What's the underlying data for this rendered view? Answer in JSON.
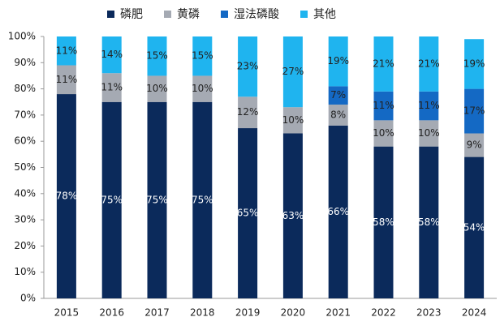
{
  "chart_data": {
    "type": "stacked_bar",
    "categories": [
      "2015",
      "2016",
      "2017",
      "2018",
      "2019",
      "2020",
      "2021",
      "2022",
      "2023",
      "2024"
    ],
    "series": [
      {
        "name": "磷肥",
        "color": "#0b2a5b",
        "values": [
          78,
          75,
          75,
          75,
          65,
          63,
          66,
          58,
          58,
          54
        ],
        "value_labels": [
          "78%",
          "75%",
          "75%",
          "75%",
          "65%",
          "63%",
          "66%",
          "58%",
          "58%",
          "54%"
        ]
      },
      {
        "name": "黄磷",
        "color": "#a5aab3",
        "values": [
          11,
          11,
          10,
          10,
          12,
          10,
          8,
          10,
          10,
          9
        ],
        "value_labels": [
          "11%",
          "11%",
          "10%",
          "10%",
          "12%",
          "10%",
          "8%",
          "10%",
          "10%",
          "9%"
        ]
      },
      {
        "name": "湿法磷酸",
        "color": "#1469c4",
        "values": [
          0,
          0,
          0,
          0,
          0,
          0,
          7,
          11,
          11,
          17
        ],
        "value_labels": [
          null,
          null,
          null,
          null,
          null,
          null,
          "7%",
          "11%",
          "11%",
          "17%"
        ]
      },
      {
        "name": "其他",
        "color": "#1fb4ef",
        "values": [
          11,
          14,
          15,
          15,
          23,
          27,
          19,
          21,
          21,
          19
        ],
        "value_labels": [
          "11%",
          "14%",
          "15%",
          "15%",
          "23%",
          "27%",
          "19%",
          "21%",
          "21%",
          "19%"
        ]
      }
    ],
    "ylim": [
      0,
      100
    ],
    "yticks": [
      {
        "value": 0,
        "label": "0%"
      },
      {
        "value": 10,
        "label": "10%"
      },
      {
        "value": 20,
        "label": "20%"
      },
      {
        "value": 30,
        "label": "30%"
      },
      {
        "value": 40,
        "label": "40%"
      },
      {
        "value": 50,
        "label": "50%"
      },
      {
        "value": 60,
        "label": "60%"
      },
      {
        "value": 70,
        "label": "70%"
      },
      {
        "value": 80,
        "label": "80%"
      },
      {
        "value": 90,
        "label": "90%"
      },
      {
        "value": 100,
        "label": "100%"
      }
    ],
    "legend": "top"
  }
}
